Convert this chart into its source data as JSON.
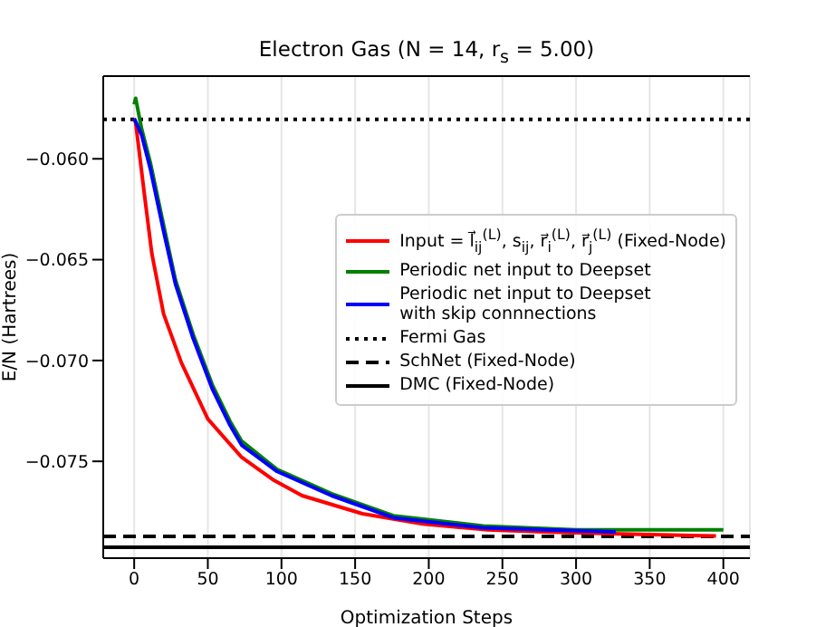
{
  "chart_data": {
    "type": "line",
    "title": "Electron Gas (N = 14, r$_{s}$ = 5.00)",
    "xlabel": "Optimization Steps",
    "ylabel": "E/N (Hartrees)",
    "xlim": [
      -21,
      418
    ],
    "xticks": [
      0,
      50,
      100,
      150,
      200,
      250,
      300,
      350,
      400
    ],
    "ylim": [
      -0.0798,
      -0.0559
    ],
    "yticks": [
      {
        "value": -0.06,
        "label": "−0.060"
      },
      {
        "value": -0.065,
        "label": "−0.065"
      },
      {
        "value": -0.07,
        "label": "−0.070"
      },
      {
        "value": -0.075,
        "label": "−0.075"
      }
    ],
    "grid": true,
    "legend": "right",
    "marker": "none",
    "line_style": "solid",
    "series": [
      {
        "name": "Input = l⃗$_{ij}$$^{(L)}$, s$_{ij}$, r⃗$_{i}$$^{(L)}$, r⃗$_{j}$$^{(L)}$ (Fixed-Node)",
        "color": "#ff0000",
        "x": [
          0,
          1,
          7,
          12,
          20,
          32,
          50,
          73,
          94,
          114,
          155,
          196,
          240,
          278,
          330,
          395
        ],
        "values": [
          -0.058,
          -0.0582,
          -0.0618,
          -0.0647,
          -0.0677,
          -0.0701,
          -0.0729,
          -0.0748,
          -0.0759,
          -0.0767,
          -0.0776,
          -0.0781,
          -0.0784,
          -0.0785,
          -0.0786,
          -0.0787
        ]
      },
      {
        "name": "Periodic net input to Deepset",
        "color": "#008000",
        "x": [
          0,
          1,
          5,
          11,
          20,
          28,
          40,
          53,
          65,
          73,
          97,
          134,
          176,
          237,
          300,
          350,
          400
        ],
        "values": [
          -0.0573,
          -0.057,
          -0.0585,
          -0.0602,
          -0.0633,
          -0.066,
          -0.0687,
          -0.0712,
          -0.073,
          -0.074,
          -0.0754,
          -0.0766,
          -0.0777,
          -0.0782,
          -0.0784,
          -0.0784,
          -0.0784
        ]
      },
      {
        "name": "Periodic net input to Deepset\nwith skip connnections",
        "color": "#0000ff",
        "x": [
          0,
          5,
          11,
          20,
          28,
          40,
          53,
          65,
          73,
          97,
          134,
          176,
          237,
          280,
          327
        ],
        "values": [
          -0.058,
          -0.0588,
          -0.0605,
          -0.0636,
          -0.0662,
          -0.0689,
          -0.0714,
          -0.0732,
          -0.0742,
          -0.0755,
          -0.0767,
          -0.0778,
          -0.0783,
          -0.0784,
          -0.0785
        ]
      }
    ],
    "ref_lines": [
      {
        "axis": "y",
        "value": -0.05804,
        "label": "Fermi Gas",
        "color": "#000000",
        "line_style": "dotted"
      },
      {
        "axis": "y",
        "value": -0.07872,
        "label": "SchNet (Fixed-Node)",
        "color": "#000000",
        "line_style": "dashed"
      },
      {
        "axis": "y",
        "value": -0.07926,
        "label": "DMC (Fixed-Node)",
        "color": "#000000",
        "line_style": "solid"
      }
    ]
  }
}
